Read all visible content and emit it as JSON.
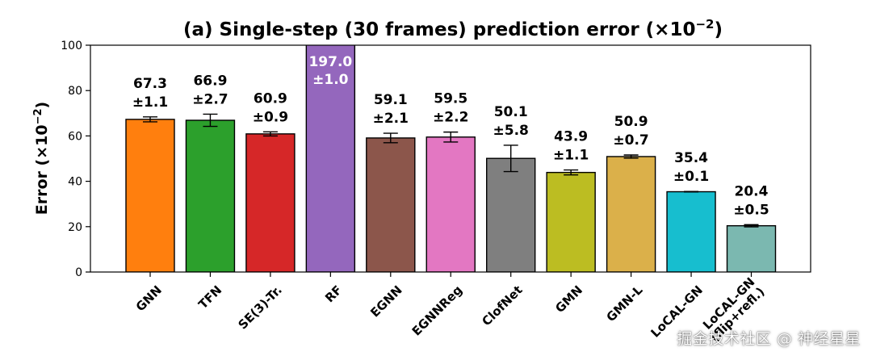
{
  "chart_data": {
    "type": "bar",
    "title_prefix": "(a) Single-step (30 frames) prediction error (×10",
    "title_exp": "−2",
    "title_suffix": ")",
    "ylabel_prefix": "Error (×10",
    "ylabel_exp": "−2",
    "ylabel_suffix": ")",
    "ylim": [
      0,
      100
    ],
    "yticks": [
      0,
      20,
      40,
      60,
      80,
      100
    ],
    "grid": false,
    "categories": [
      {
        "lines": [
          "GNN"
        ]
      },
      {
        "lines": [
          "TFN"
        ]
      },
      {
        "lines": [
          "SE(3)-Tr."
        ]
      },
      {
        "lines": [
          "RF"
        ]
      },
      {
        "lines": [
          "EGNN"
        ]
      },
      {
        "lines": [
          "EGNNReg"
        ]
      },
      {
        "lines": [
          "ClofNet"
        ]
      },
      {
        "lines": [
          "GMN"
        ]
      },
      {
        "lines": [
          "GMN-L"
        ]
      },
      {
        "lines": [
          "LoCAL-GN"
        ]
      },
      {
        "lines": [
          "LoCAL-GN",
          "(flip+refl.)"
        ]
      }
    ],
    "values": [
      67.3,
      66.9,
      60.9,
      197.0,
      59.1,
      59.5,
      50.1,
      43.9,
      50.9,
      35.4,
      20.4
    ],
    "errors": [
      1.1,
      2.7,
      0.9,
      1.0,
      2.1,
      2.2,
      5.8,
      1.1,
      0.7,
      0.1,
      0.5
    ],
    "value_labels": [
      "67.3",
      "66.9",
      "60.9",
      "197.0",
      "59.1",
      "59.5",
      "50.1",
      "43.9",
      "50.9",
      "35.4",
      "20.4"
    ],
    "error_labels": [
      "±1.1",
      "±2.7",
      "±0.9",
      "±1.0",
      "±2.1",
      "±2.2",
      "±5.8",
      "±1.1",
      "±0.7",
      "±0.1",
      "±0.5"
    ],
    "colors": [
      "#ff7f0e",
      "#2ca02c",
      "#d62728",
      "#9467bd",
      "#8c564b",
      "#e377c2",
      "#7f7f7f",
      "#bcbd22",
      "#dbb04a",
      "#17becf",
      "#7bb8b0"
    ]
  },
  "watermark": "掘金技术社区 @ 神经星星"
}
